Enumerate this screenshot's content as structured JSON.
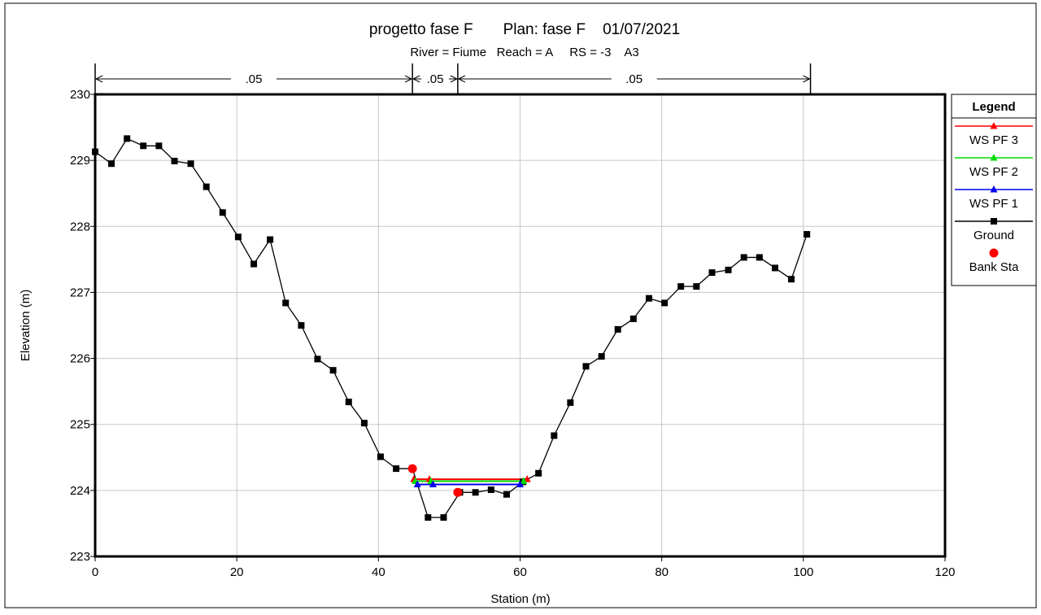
{
  "chart_data": {
    "type": "line",
    "title": "progetto fase F       Plan: fase F    01/07/2021",
    "subtitle": "River = Fiume   Reach = A     RS = -3    A3",
    "xlabel": "Station (m)",
    "ylabel": "Elevation (m)",
    "xlim": [
      0,
      120
    ],
    "ylim": [
      223,
      230
    ],
    "xticks": [
      "0",
      "20",
      "40",
      "60",
      "80",
      "100",
      "120"
    ],
    "yticks": [
      "223",
      "224",
      "225",
      "226",
      "227",
      "228",
      "229",
      "230"
    ],
    "grid": true,
    "legend_position": "right",
    "legend_title": "Legend",
    "manning": [
      {
        "label": ".05",
        "from": 0,
        "to": 44.8
      },
      {
        "label": ".05",
        "from": 44.8,
        "to": 51.2
      },
      {
        "label": ".05",
        "from": 51.2,
        "to": 101
      }
    ],
    "series": [
      {
        "name": "WS PF 3",
        "color": "#ff0000",
        "marker": "triangle",
        "elevation": 224.17,
        "x": [
          45.0,
          61.0
        ]
      },
      {
        "name": "WS PF 2",
        "color": "#00dd00",
        "marker": "triangle",
        "elevation": 224.14,
        "x": [
          45.2,
          60.5
        ]
      },
      {
        "name": "WS PF 1",
        "color": "#0000ee",
        "marker": "triangle",
        "elevation": 224.09,
        "x": [
          45.5,
          60.0
        ]
      },
      {
        "name": "Ground",
        "color": "#000000",
        "marker": "square",
        "x": [
          0,
          2.3,
          4.5,
          6.8,
          9.0,
          11.2,
          13.5,
          15.7,
          18.0,
          20.2,
          22.4,
          24.7,
          26.9,
          29.1,
          31.4,
          33.6,
          35.8,
          38.0,
          40.3,
          42.5,
          44.8,
          47.0,
          49.2,
          51.5,
          53.7,
          55.9,
          58.1,
          60.4,
          62.6,
          64.8,
          67.1,
          69.3,
          71.5,
          73.8,
          76.0,
          78.2,
          80.4,
          82.7,
          84.9,
          87.1,
          89.4,
          91.6,
          93.8,
          96.0,
          98.3,
          100.5
        ],
        "y": [
          229.13,
          228.95,
          229.33,
          229.22,
          229.22,
          228.99,
          228.95,
          228.6,
          228.21,
          227.84,
          227.43,
          227.8,
          226.84,
          226.5,
          225.99,
          225.82,
          225.34,
          225.02,
          224.51,
          224.33,
          224.33,
          223.59,
          223.59,
          223.97,
          223.97,
          224.01,
          223.94,
          224.13,
          224.26,
          224.83,
          225.33,
          225.88,
          226.03,
          226.44,
          226.6,
          226.91,
          226.84,
          227.09,
          227.09,
          227.3,
          227.34,
          227.53,
          227.53,
          227.37,
          227.2,
          227.88
        ]
      },
      {
        "name": "Bank Sta",
        "color": "#ff0000",
        "marker": "circle",
        "x": [
          44.8,
          51.2
        ],
        "y": [
          224.33,
          223.97
        ]
      }
    ]
  }
}
